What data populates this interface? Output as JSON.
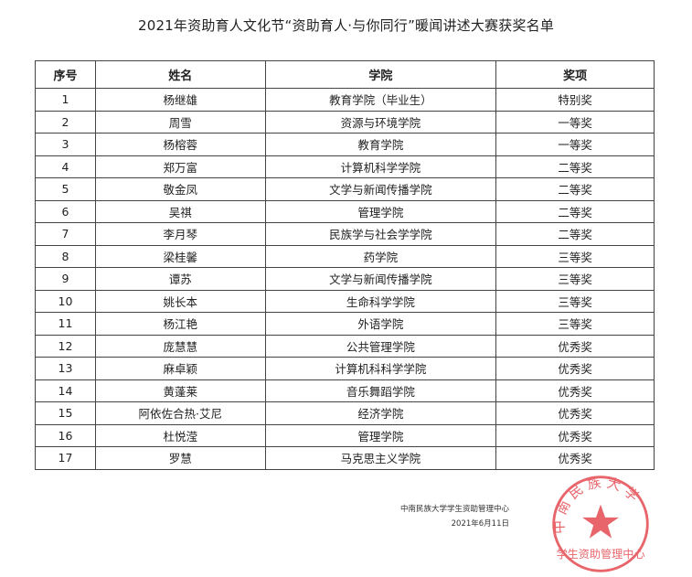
{
  "document": {
    "title": "2021年资助育人文化节“资助育人·与你同行”暖闻讲述大赛获奖名单",
    "columns": [
      "序号",
      "姓名",
      "学院",
      "奖项"
    ],
    "rows": [
      [
        "1",
        "杨继雄",
        "教育学院（毕业生）",
        "特别奖"
      ],
      [
        "2",
        "周雪",
        "资源与环境学院",
        "一等奖"
      ],
      [
        "3",
        "杨榕蓉",
        "教育学院",
        "一等奖"
      ],
      [
        "4",
        "郑万富",
        "计算机科学学院",
        "二等奖"
      ],
      [
        "5",
        "敬金凤",
        "文学与新闻传播学院",
        "二等奖"
      ],
      [
        "6",
        "吴祺",
        "管理学院",
        "二等奖"
      ],
      [
        "7",
        "李月琴",
        "民族学与社会学学院",
        "二等奖"
      ],
      [
        "8",
        "梁桂馨",
        "药学院",
        "三等奖"
      ],
      [
        "9",
        "谭苏",
        "文学与新闻传播学院",
        "三等奖"
      ],
      [
        "10",
        "姚长本",
        "生命科学学院",
        "三等奖"
      ],
      [
        "11",
        "杨江艳",
        "外语学院",
        "三等奖"
      ],
      [
        "12",
        "庞慧慧",
        "公共管理学院",
        "优秀奖"
      ],
      [
        "13",
        "麻卓颖",
        "计算机科科学学院",
        "优秀奖"
      ],
      [
        "14",
        "黄蓬莱",
        "音乐舞蹈学院",
        "优秀奖"
      ],
      [
        "15",
        "阿依佐合热·艾尼",
        "经济学院",
        "优秀奖"
      ],
      [
        "16",
        "杜悦滢",
        "管理学院",
        "优秀奖"
      ],
      [
        "17",
        "罗慧",
        "马克思主义学院",
        "优秀奖"
      ]
    ],
    "signature": "中南民族大学学生资助管理中心",
    "date": "2021年6月11日",
    "stamp": {
      "outer_text": "中南民族大学",
      "inner_text": "学生资助管理中心",
      "color": "#e0323a"
    }
  }
}
